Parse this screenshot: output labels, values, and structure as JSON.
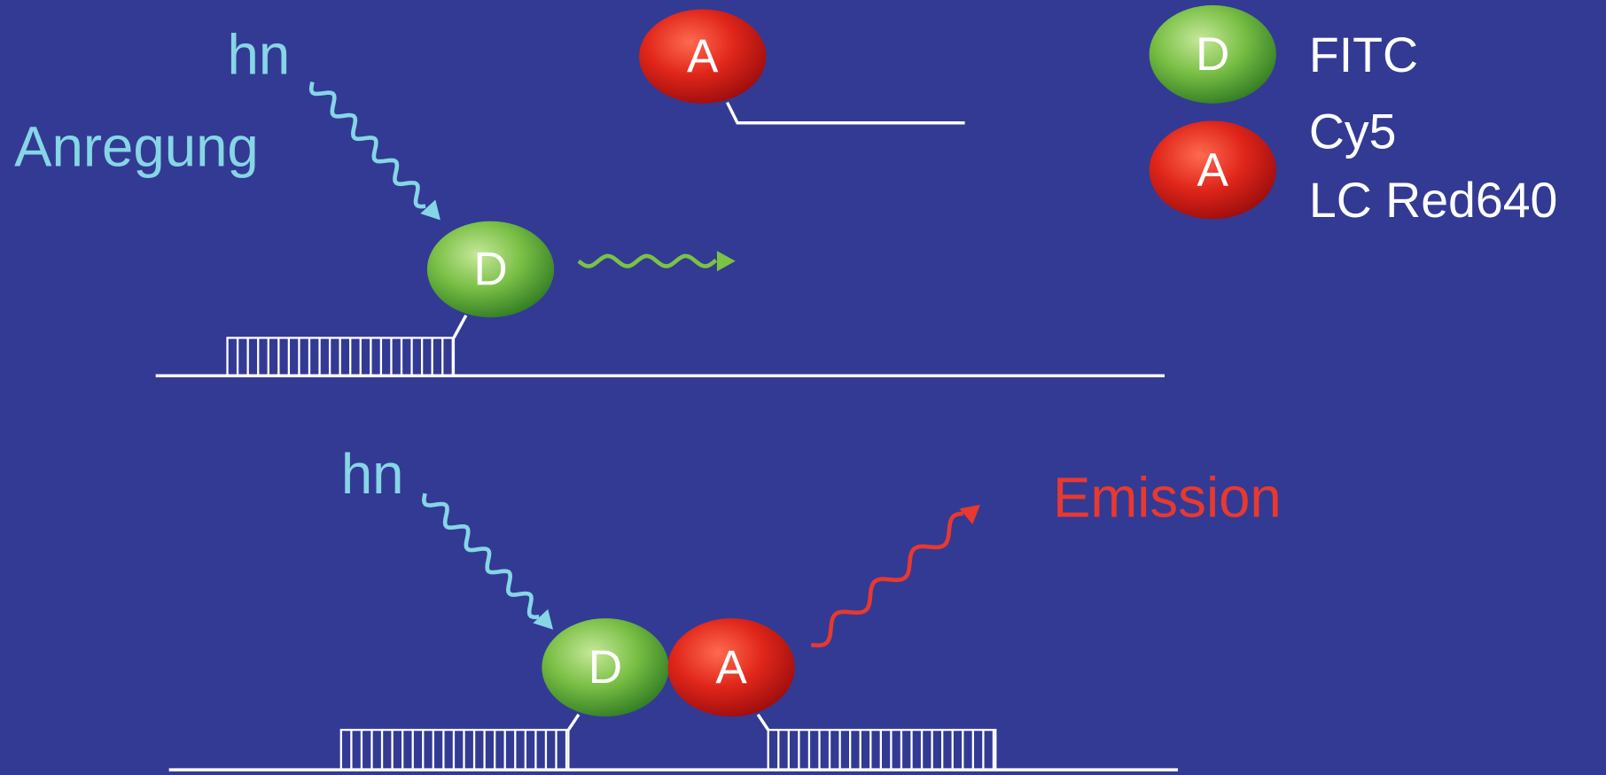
{
  "top": {
    "excitation_symbol": "hn",
    "excitation_label": "Anregung",
    "donor": "D",
    "acceptor": "A"
  },
  "legend": {
    "donor": {
      "symbol": "D",
      "dyes": [
        "FITC"
      ]
    },
    "acceptor": {
      "symbol": "A",
      "dyes": [
        "Cy5",
        "LC Red640"
      ]
    }
  },
  "bottom": {
    "excitation_symbol": "hn",
    "emission_label": "Emission",
    "donor": "D",
    "acceptor": "A"
  }
}
